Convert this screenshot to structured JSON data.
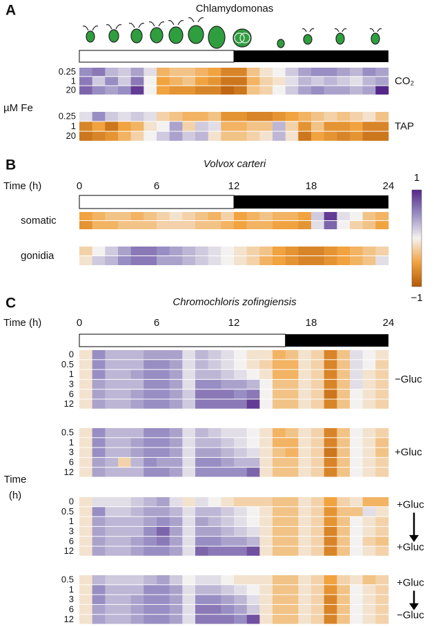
{
  "chart_data": [
    {
      "type": "heatmap",
      "panel": "A",
      "title": "Chlamydomonas",
      "xlim": [
        0,
        24
      ],
      "light": [
        0,
        12
      ],
      "y_label": "µM Fe",
      "groups": [
        {
          "label": [
            "CO₂"
          ],
          "rows": [
            0.25,
            1,
            20
          ],
          "values": [
            [
              0.5,
              0.6,
              0.3,
              0.2,
              0.4,
              0.1,
              -0.4,
              -0.3,
              -0.3,
              -0.4,
              -0.5,
              -0.7,
              -0.7,
              -0.3,
              -0.1,
              0.0,
              0.2,
              0.4,
              0.5,
              0.5,
              0.4,
              0.3,
              0.5,
              0.4
            ],
            [
              0.6,
              0.2,
              0.5,
              0.2,
              0.6,
              0.0,
              -0.5,
              -0.4,
              -0.3,
              -0.5,
              -0.6,
              -0.8,
              -0.8,
              -0.4,
              -0.2,
              -0.1,
              0.1,
              0.3,
              0.2,
              0.3,
              0.2,
              0.1,
              0.3,
              0.4
            ],
            [
              0.7,
              0.5,
              0.4,
              0.5,
              0.9,
              0.0,
              -0.5,
              -0.6,
              -0.6,
              -0.7,
              -0.7,
              -0.9,
              -0.8,
              -0.3,
              -0.2,
              0.0,
              0.2,
              0.4,
              0.5,
              0.4,
              0.4,
              0.3,
              0.4,
              1.0
            ]
          ]
        },
        {
          "label": [
            "TAP"
          ],
          "rows": [
            0.25,
            1,
            20
          ],
          "values": [
            [
              0.1,
              0.5,
              0.2,
              0.1,
              0.2,
              0.1,
              -0.2,
              -0.3,
              -0.4,
              -0.4,
              -0.3,
              -0.6,
              -0.6,
              -0.7,
              -0.7,
              -0.6,
              -0.5,
              -0.4,
              -0.3,
              -0.2,
              -0.3,
              -0.2,
              -0.1,
              -0.3
            ],
            [
              -0.7,
              -0.5,
              -0.8,
              -0.5,
              -0.4,
              -0.1,
              0.0,
              0.4,
              -0.2,
              0.2,
              0.1,
              -0.4,
              -0.4,
              -0.3,
              -0.3,
              0.3,
              -0.2,
              -0.6,
              -0.3,
              -0.6,
              -0.6,
              -0.5,
              -0.7,
              -0.7
            ],
            [
              -0.8,
              -0.7,
              -0.6,
              -0.4,
              -0.2,
              0.0,
              0.2,
              0.4,
              0.2,
              0.3,
              -0.1,
              -0.3,
              -0.3,
              -0.2,
              -0.1,
              0.3,
              -0.1,
              -0.8,
              -0.5,
              -0.6,
              -0.7,
              -0.6,
              -0.8,
              -0.8
            ]
          ]
        }
      ]
    },
    {
      "type": "heatmap",
      "panel": "B",
      "title": "Volvox carteri",
      "x_label": "Time (h)",
      "xlim": [
        0,
        24
      ],
      "xticks": [
        0,
        6,
        12,
        18,
        24
      ],
      "light": [
        0,
        12
      ],
      "colorbar": {
        "lim": [
          -1,
          1
        ],
        "ticks": [
          1,
          {
            "value": -1,
            "label": "−1"
          }
        ],
        "colors": [
          "#b35806",
          "#f1a340",
          "#f4f2f0",
          "#998ec3",
          "#542788"
        ]
      },
      "groups": [
        {
          "label": [
            "somatic"
          ],
          "values": [
            [
              -0.5,
              -0.4,
              -0.3,
              -0.3,
              -0.4,
              -0.3,
              -0.2,
              -0.1,
              -0.2,
              -0.3,
              -0.4,
              -0.2,
              -0.5,
              -0.4,
              -0.3,
              -0.4,
              -0.4,
              -0.5,
              0.2,
              0.9,
              0.1,
              0.0,
              -0.3,
              -0.4
            ],
            [
              -0.6,
              -0.4,
              -0.4,
              -0.3,
              -0.3,
              -0.3,
              -0.2,
              -0.2,
              -0.2,
              -0.3,
              -0.3,
              -0.4,
              -0.5,
              -0.4,
              -0.4,
              -0.5,
              -0.5,
              -0.6,
              0.1,
              0.7,
              0.0,
              -0.2,
              -0.3,
              -0.5
            ]
          ]
        },
        {
          "label": [
            "gonidia"
          ],
          "values": [
            [
              -0.2,
              0.0,
              0.2,
              0.4,
              0.6,
              0.6,
              0.5,
              0.4,
              0.3,
              0.2,
              0.1,
              0.0,
              -0.1,
              -0.2,
              -0.3,
              -0.5,
              -0.6,
              -0.7,
              -0.7,
              -0.6,
              -0.5,
              -0.4,
              -0.3,
              -0.2
            ],
            [
              -0.1,
              0.2,
              0.3,
              0.5,
              0.6,
              0.6,
              0.4,
              0.4,
              0.3,
              0.2,
              0.1,
              0.0,
              -0.1,
              -0.2,
              -0.4,
              -0.5,
              -0.6,
              -0.7,
              -0.7,
              -0.6,
              -0.5,
              -0.4,
              -0.3,
              0.1
            ]
          ]
        }
      ]
    },
    {
      "type": "heatmap",
      "panel": "C",
      "title": "Chromochloris zofingiensis",
      "x_label": "Time (h)",
      "xlim": [
        0,
        24
      ],
      "xticks": [
        0,
        6,
        12,
        18,
        24
      ],
      "light": [
        0,
        16
      ],
      "y_label": [
        "Time",
        "(h)"
      ],
      "groups": [
        {
          "label": [
            "−Gluc"
          ],
          "rows": [
            0,
            0.5,
            1,
            3,
            6,
            12
          ],
          "values": [
            [
              -0.1,
              0.5,
              0.3,
              0.3,
              0.3,
              0.4,
              0.4,
              0.4,
              0.1,
              0.3,
              0.2,
              0.1,
              0.0,
              -0.1,
              -0.1,
              -0.4,
              -0.3,
              -0.1,
              -0.2,
              -0.7,
              -0.3,
              0.1,
              0.0,
              -0.1
            ],
            [
              -0.1,
              0.5,
              0.3,
              0.3,
              0.3,
              0.5,
              0.5,
              0.4,
              0.1,
              0.3,
              0.2,
              0.1,
              0.0,
              -0.1,
              -0.2,
              -0.4,
              -0.4,
              -0.1,
              -0.2,
              -0.7,
              -0.3,
              0.1,
              0.0,
              -0.2
            ],
            [
              -0.1,
              0.5,
              0.3,
              0.3,
              0.4,
              0.5,
              0.5,
              0.4,
              0.1,
              0.3,
              0.3,
              0.2,
              0.1,
              0.0,
              -0.1,
              -0.4,
              -0.4,
              -0.1,
              -0.2,
              -0.7,
              -0.3,
              0.1,
              -0.1,
              -0.2
            ],
            [
              -0.1,
              0.4,
              0.3,
              0.3,
              0.3,
              0.5,
              0.5,
              0.4,
              0.1,
              0.5,
              0.5,
              0.4,
              0.4,
              0.3,
              0.0,
              -0.3,
              -0.3,
              -0.1,
              -0.2,
              -0.7,
              -0.3,
              0.1,
              -0.1,
              -0.2
            ],
            [
              -0.1,
              0.4,
              0.3,
              0.3,
              0.4,
              0.5,
              0.5,
              0.4,
              0.2,
              0.6,
              0.6,
              0.6,
              0.5,
              0.6,
              0.0,
              -0.3,
              -0.3,
              -0.1,
              -0.2,
              -0.8,
              -0.3,
              0.0,
              -0.1,
              -0.2
            ],
            [
              -0.1,
              0.4,
              0.3,
              0.3,
              0.4,
              0.5,
              0.5,
              0.4,
              0.2,
              0.6,
              0.6,
              0.6,
              0.6,
              0.9,
              0.0,
              -0.3,
              -0.3,
              -0.1,
              -0.2,
              -0.7,
              -0.3,
              0.0,
              -0.1,
              -0.2
            ]
          ]
        },
        {
          "label": [
            "+Gluc"
          ],
          "rows": [
            0.5,
            1,
            3,
            6,
            12
          ],
          "values": [
            [
              -0.1,
              0.5,
              0.3,
              0.3,
              0.3,
              0.5,
              0.5,
              0.4,
              0.1,
              0.3,
              0.2,
              0.1,
              0.1,
              0.0,
              -0.1,
              -0.4,
              -0.3,
              -0.1,
              -0.2,
              -0.7,
              -0.3,
              0.0,
              -0.1,
              -0.2
            ],
            [
              -0.1,
              0.5,
              0.3,
              0.3,
              0.4,
              0.5,
              0.5,
              0.4,
              0.1,
              0.3,
              0.3,
              0.2,
              0.1,
              0.0,
              -0.1,
              -0.4,
              -0.4,
              -0.1,
              -0.2,
              -0.7,
              -0.3,
              0.0,
              -0.1,
              -0.3
            ],
            [
              -0.1,
              0.5,
              0.3,
              0.3,
              0.4,
              0.5,
              0.5,
              0.4,
              0.1,
              0.4,
              0.4,
              0.3,
              0.2,
              0.1,
              -0.1,
              -0.3,
              -0.4,
              -0.1,
              -0.2,
              -0.8,
              -0.3,
              0.0,
              -0.1,
              -0.3
            ],
            [
              -0.1,
              0.4,
              0.3,
              -0.2,
              0.3,
              0.5,
              0.4,
              0.4,
              0.1,
              0.5,
              0.5,
              0.4,
              0.3,
              0.3,
              -0.1,
              -0.3,
              -0.3,
              -0.1,
              -0.2,
              -0.7,
              -0.3,
              0.0,
              -0.1,
              -0.2
            ],
            [
              -0.1,
              0.4,
              0.3,
              0.3,
              0.3,
              0.5,
              0.5,
              0.4,
              0.1,
              0.5,
              0.5,
              0.5,
              0.5,
              0.7,
              -0.1,
              -0.3,
              -0.3,
              -0.1,
              -0.2,
              -0.7,
              -0.3,
              0.0,
              -0.1,
              -0.2
            ]
          ]
        },
        {
          "label": [
            "+Gluc",
            "+Gluc"
          ],
          "rows": [
            0,
            0.5,
            1,
            3,
            6,
            12
          ],
          "values": [
            [
              -0.1,
              0.1,
              0.1,
              0.1,
              0.2,
              0.3,
              0.4,
              0.1,
              -0.1,
              0.1,
              0.0,
              -0.1,
              -0.2,
              -0.2,
              -0.2,
              -0.3,
              -0.3,
              -0.1,
              -0.2,
              -0.5,
              -0.2,
              -0.1,
              -0.4,
              -0.4
            ],
            [
              -0.1,
              0.5,
              0.2,
              0.2,
              0.3,
              0.4,
              0.4,
              0.3,
              0.1,
              0.3,
              0.3,
              0.2,
              0.1,
              0.0,
              -0.1,
              -0.3,
              -0.3,
              -0.1,
              -0.2,
              -0.6,
              -0.3,
              -0.3,
              0.1,
              -0.1
            ],
            [
              -0.1,
              0.4,
              0.3,
              0.3,
              0.3,
              0.4,
              0.5,
              0.4,
              0.1,
              0.4,
              0.3,
              0.2,
              0.1,
              0.0,
              -0.1,
              -0.3,
              -0.3,
              -0.1,
              -0.2,
              -0.6,
              -0.3,
              0.0,
              -0.1,
              -0.2
            ],
            [
              -0.1,
              0.4,
              0.3,
              0.3,
              0.3,
              0.5,
              0.7,
              0.4,
              0.1,
              0.4,
              0.4,
              0.3,
              0.2,
              0.1,
              -0.1,
              -0.3,
              -0.3,
              -0.1,
              -0.2,
              -0.7,
              -0.3,
              0.0,
              -0.1,
              -0.2
            ],
            [
              -0.1,
              0.4,
              0.3,
              0.3,
              0.4,
              0.5,
              0.6,
              0.4,
              0.1,
              0.5,
              0.5,
              0.4,
              0.4,
              0.3,
              -0.1,
              -0.3,
              -0.3,
              -0.1,
              -0.2,
              -0.7,
              -0.3,
              0.0,
              -0.2,
              -0.3
            ],
            [
              -0.1,
              0.4,
              0.3,
              0.3,
              0.4,
              0.5,
              0.5,
              0.4,
              0.1,
              0.7,
              0.6,
              0.6,
              0.6,
              0.8,
              -0.1,
              -0.3,
              -0.3,
              -0.1,
              -0.2,
              -0.7,
              -0.3,
              0.0,
              -0.1,
              -0.2
            ]
          ]
        },
        {
          "label": [
            "+Gluc",
            "−Gluc"
          ],
          "rows": [
            0.5,
            1,
            3,
            6,
            12
          ],
          "values": [
            [
              -0.1,
              0.3,
              0.2,
              0.2,
              0.2,
              0.3,
              0.4,
              0.2,
              0.0,
              0.1,
              0.1,
              0.0,
              -0.1,
              -0.1,
              -0.1,
              -0.3,
              -0.3,
              -0.1,
              -0.2,
              -0.5,
              -0.2,
              -0.1,
              -0.3,
              -0.2
            ],
            [
              -0.1,
              0.5,
              0.3,
              0.3,
              0.3,
              0.5,
              0.5,
              0.4,
              0.1,
              0.3,
              0.3,
              0.2,
              0.1,
              0.0,
              -0.1,
              -0.3,
              -0.3,
              -0.1,
              -0.2,
              -0.6,
              -0.3,
              0.0,
              -0.1,
              -0.2
            ],
            [
              -0.1,
              0.5,
              0.3,
              0.3,
              0.4,
              0.5,
              0.5,
              0.4,
              0.1,
              0.5,
              0.5,
              0.4,
              0.3,
              0.1,
              -0.1,
              -0.3,
              -0.3,
              -0.1,
              -0.2,
              -0.7,
              -0.3,
              0.0,
              -0.1,
              -0.2
            ],
            [
              -0.1,
              0.4,
              0.3,
              0.3,
              0.4,
              0.5,
              0.5,
              0.4,
              0.1,
              0.6,
              0.6,
              0.5,
              0.4,
              0.2,
              -0.1,
              -0.3,
              -0.3,
              -0.1,
              -0.2,
              -0.7,
              -0.3,
              0.0,
              -0.1,
              -0.2
            ],
            [
              -0.1,
              0.4,
              0.3,
              0.3,
              0.4,
              0.5,
              0.5,
              0.4,
              0.1,
              0.6,
              0.6,
              0.6,
              0.5,
              0.8,
              -0.1,
              -0.3,
              -0.3,
              -0.1,
              -0.2,
              -0.7,
              -0.3,
              0.0,
              -0.1,
              -0.2
            ]
          ]
        }
      ]
    }
  ]
}
